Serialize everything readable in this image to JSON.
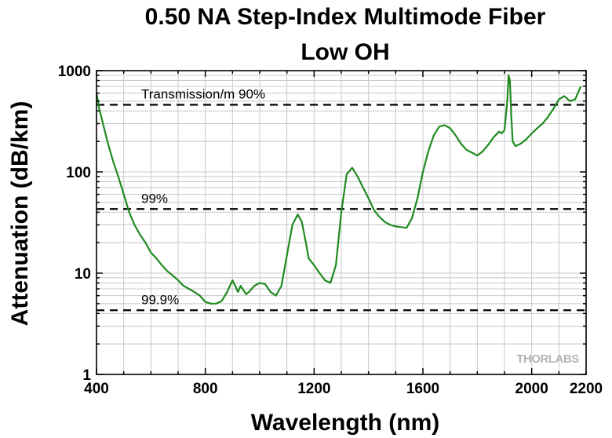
{
  "chart_data": {
    "type": "line",
    "title": [
      "0.50 NA Step-Index Multimode Fiber",
      "Low OH"
    ],
    "xlabel": "Wavelength (nm)",
    "ylabel": "Attenuation (dB/km)",
    "xlim": [
      400,
      2200
    ],
    "ylim": [
      1,
      1000
    ],
    "yscale": "log",
    "grid": true,
    "x_ticks": [
      400,
      800,
      1200,
      1600,
      2000,
      2200
    ],
    "y_ticks": [
      1,
      10,
      100,
      1000
    ],
    "series": [
      {
        "color": "#1f8a1f",
        "x": [
          400,
          410,
          420,
          440,
          460,
          480,
          500,
          520,
          540,
          560,
          580,
          600,
          620,
          640,
          660,
          680,
          700,
          720,
          740,
          760,
          780,
          800,
          820,
          840,
          860,
          880,
          900,
          910,
          920,
          930,
          940,
          950,
          960,
          980,
          1000,
          1020,
          1040,
          1060,
          1080,
          1100,
          1120,
          1140,
          1155,
          1170,
          1180,
          1200,
          1220,
          1240,
          1260,
          1280,
          1300,
          1320,
          1340,
          1360,
          1380,
          1400,
          1420,
          1440,
          1460,
          1480,
          1500,
          1520,
          1540,
          1560,
          1580,
          1600,
          1620,
          1640,
          1660,
          1680,
          1700,
          1720,
          1740,
          1760,
          1780,
          1800,
          1820,
          1840,
          1860,
          1880,
          1890,
          1900,
          1910,
          1915,
          1920,
          1925,
          1930,
          1940,
          1960,
          1980,
          2000,
          2020,
          2040,
          2060,
          2080,
          2100,
          2120,
          2140,
          2160,
          2180
        ],
        "y": [
          600,
          420,
          330,
          200,
          130,
          90,
          60,
          40,
          30,
          24,
          20,
          16,
          14,
          12,
          10.5,
          9.5,
          8.5,
          7.5,
          7,
          6.5,
          6,
          5.2,
          5,
          5,
          5.3,
          6.5,
          8.5,
          7.5,
          6.5,
          7.5,
          6.8,
          6.2,
          6.5,
          7.5,
          8,
          7.8,
          6.5,
          6,
          7.5,
          15,
          30,
          38,
          32,
          20,
          14,
          12,
          10,
          8.5,
          8,
          12,
          40,
          95,
          110,
          90,
          70,
          55,
          42,
          36,
          32,
          30,
          29,
          28.5,
          28,
          35,
          55,
          100,
          160,
          230,
          280,
          290,
          270,
          230,
          190,
          165,
          155,
          145,
          160,
          185,
          220,
          250,
          240,
          260,
          500,
          900,
          800,
          350,
          200,
          180,
          190,
          210,
          240,
          270,
          300,
          350,
          420,
          520,
          560,
          500,
          520,
          700
        ]
      }
    ],
    "reference_lines": [
      {
        "label": "Transmission/m 90%",
        "y": 460
      },
      {
        "label": "99%",
        "y": 43
      },
      {
        "label": "99.9%",
        "y": 4.3
      }
    ],
    "watermark": "THORLABS"
  }
}
